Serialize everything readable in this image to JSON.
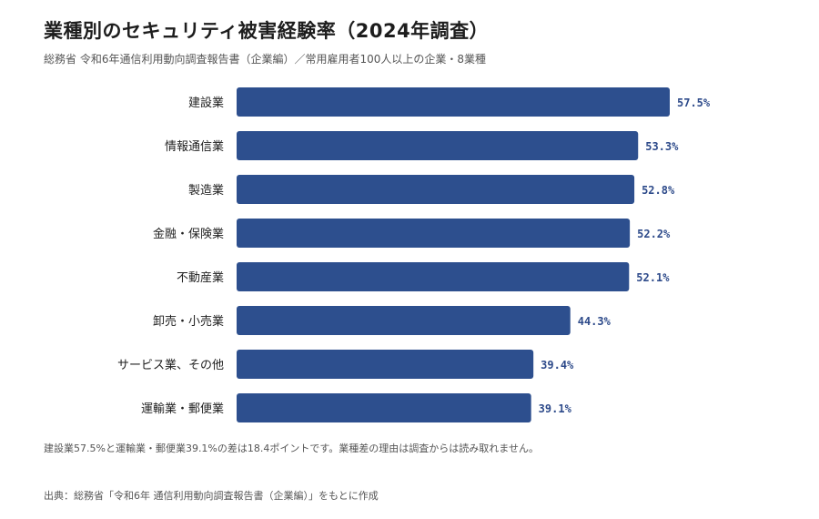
{
  "chart_data": {
    "type": "bar",
    "orientation": "horizontal",
    "title": "業種別のセキュリティ被害経験率（2024年調査）",
    "subtitle": "総務省 令和6年通信利用動向調査報告書（企業編）／常用雇用者100人以上の企業・8業種",
    "categories": [
      "建設業",
      "情報通信業",
      "製造業",
      "金融・保険業",
      "不動産業",
      "卸売・小売業",
      "サービス業、その他",
      "運輸業・郵便業"
    ],
    "values": [
      57.5,
      53.3,
      52.8,
      52.2,
      52.1,
      44.3,
      39.4,
      39.1
    ],
    "value_labels": [
      "57.5%",
      "53.3%",
      "52.8%",
      "52.2%",
      "52.1%",
      "44.3%",
      "39.4%",
      "39.1%"
    ],
    "unit": "%",
    "xlim": [
      0,
      60
    ],
    "grid": false,
    "bar_color": "#2d4f8e",
    "note": "建設業57.5%と運輸業・郵便業39.1%の差は18.4ポイントです。業種差の理由は調査からは読み取れません。",
    "source": "出典：総務省「令和6年 通信利用動向調査報告書（企業編）」をもとに作成"
  }
}
